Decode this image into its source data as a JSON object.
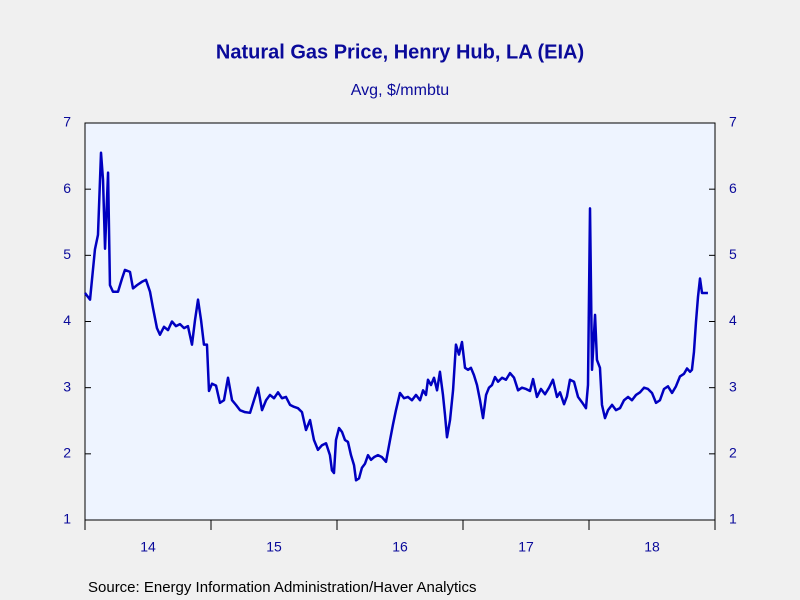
{
  "chart_data": {
    "type": "line",
    "title": "Natural Gas Price, Henry Hub, LA (EIA)",
    "subtitle": "Avg, $/mmbtu",
    "source": "Source:  Energy Information Administration/Haver Analytics",
    "color": "#0000c0",
    "xlim": [
      2014,
      2019
    ],
    "xticks": [
      {
        "value": 2014.5,
        "label": "14"
      },
      {
        "value": 2015.5,
        "label": "15"
      },
      {
        "value": 2016.5,
        "label": "16"
      },
      {
        "value": 2017.5,
        "label": "17"
      },
      {
        "value": 2018.5,
        "label": "18"
      }
    ],
    "x_minor_ticks": [
      2014,
      2015,
      2016,
      2017,
      2018,
      2019
    ],
    "ylim": [
      1,
      7
    ],
    "yticks": [
      1,
      2,
      3,
      4,
      5,
      6,
      7
    ],
    "y2lim": [
      1,
      7
    ],
    "y2ticks": [
      1,
      2,
      3,
      4,
      5,
      6,
      7
    ],
    "x": [
      2014.0,
      2014.04,
      2014.079,
      2014.103,
      2014.127,
      2014.143,
      2014.159,
      2014.183,
      2014.198,
      2014.222,
      2014.262,
      2014.294,
      2014.317,
      2014.357,
      2014.381,
      2014.413,
      2014.452,
      2014.484,
      2014.516,
      2014.54,
      2014.571,
      2014.595,
      2014.627,
      2014.659,
      2014.69,
      2014.722,
      2014.754,
      2014.786,
      2014.817,
      2014.849,
      2014.873,
      2014.897,
      2014.921,
      2014.944,
      2014.968,
      2014.984,
      2015.008,
      2015.04,
      2015.071,
      2015.103,
      2015.135,
      2015.167,
      2015.198,
      2015.23,
      2015.27,
      2015.31,
      2015.341,
      2015.373,
      2015.405,
      2015.437,
      2015.468,
      2015.5,
      2015.532,
      2015.563,
      2015.595,
      2015.627,
      2015.659,
      2015.69,
      2015.722,
      2015.754,
      2015.786,
      2015.817,
      2015.849,
      2015.881,
      2015.913,
      2015.944,
      2015.96,
      2015.976,
      2015.992,
      2016.016,
      2016.04,
      2016.063,
      2016.087,
      2016.111,
      2016.135,
      2016.151,
      2016.175,
      2016.198,
      2016.222,
      2016.246,
      2016.27,
      2016.294,
      2016.325,
      2016.357,
      2016.389,
      2016.421,
      2016.444,
      2016.468,
      2016.5,
      2016.532,
      2016.563,
      2016.595,
      2016.627,
      2016.659,
      2016.683,
      2016.706,
      2016.722,
      2016.746,
      2016.77,
      2016.794,
      2016.817,
      2016.841,
      2016.857,
      2016.873,
      2016.897,
      2016.921,
      2016.944,
      2016.968,
      2016.992,
      2017.016,
      2017.04,
      2017.063,
      2017.087,
      2017.111,
      2017.135,
      2017.159,
      2017.183,
      2017.206,
      2017.23,
      2017.254,
      2017.278,
      2017.31,
      2017.341,
      2017.373,
      2017.405,
      2017.437,
      2017.468,
      2017.5,
      2017.532,
      2017.556,
      2017.587,
      2017.619,
      2017.651,
      2017.683,
      2017.714,
      2017.746,
      2017.77,
      2017.802,
      2017.825,
      2017.849,
      2017.881,
      2017.913,
      2017.944,
      2017.976,
      2017.992,
      2018.008,
      2018.024,
      2018.048,
      2018.063,
      2018.087,
      2018.103,
      2018.127,
      2018.151,
      2018.183,
      2018.214,
      2018.246,
      2018.278,
      2018.31,
      2018.341,
      2018.373,
      2018.405,
      2018.437,
      2018.468,
      2018.5,
      2018.532,
      2018.563,
      2018.595,
      2018.627,
      2018.659,
      2018.69,
      2018.722,
      2018.754,
      2018.778,
      2018.802,
      2018.817,
      2018.833,
      2018.849,
      2018.865,
      2018.881,
      2018.897,
      2018.944
    ],
    "values": [
      4.43,
      4.33,
      5.09,
      5.31,
      6.55,
      6.14,
      5.1,
      6.25,
      4.55,
      4.45,
      4.45,
      4.65,
      4.78,
      4.75,
      4.5,
      4.55,
      4.6,
      4.63,
      4.45,
      4.2,
      3.9,
      3.8,
      3.92,
      3.87,
      4.0,
      3.93,
      3.96,
      3.9,
      3.93,
      3.65,
      4.02,
      4.33,
      4.02,
      3.65,
      3.65,
      2.95,
      3.06,
      3.03,
      2.77,
      2.81,
      3.15,
      2.81,
      2.74,
      2.66,
      2.63,
      2.62,
      2.81,
      3.0,
      2.66,
      2.81,
      2.89,
      2.84,
      2.93,
      2.84,
      2.86,
      2.74,
      2.71,
      2.69,
      2.63,
      2.36,
      2.51,
      2.21,
      2.06,
      2.13,
      2.16,
      1.98,
      1.75,
      1.71,
      2.21,
      2.39,
      2.33,
      2.21,
      2.18,
      1.98,
      1.83,
      1.6,
      1.63,
      1.79,
      1.85,
      1.98,
      1.91,
      1.95,
      1.98,
      1.95,
      1.88,
      2.21,
      2.44,
      2.66,
      2.92,
      2.84,
      2.86,
      2.81,
      2.89,
      2.81,
      2.96,
      2.89,
      3.12,
      3.04,
      3.15,
      2.96,
      3.24,
      2.89,
      2.59,
      2.25,
      2.51,
      2.96,
      3.65,
      3.5,
      3.69,
      3.3,
      3.27,
      3.3,
      3.19,
      3.04,
      2.81,
      2.54,
      2.89,
      3.0,
      3.04,
      3.16,
      3.09,
      3.15,
      3.12,
      3.22,
      3.15,
      2.96,
      3.0,
      2.98,
      2.95,
      3.13,
      2.86,
      2.98,
      2.9,
      3.0,
      3.12,
      2.86,
      2.93,
      2.75,
      2.87,
      3.12,
      3.09,
      2.86,
      2.78,
      2.69,
      3.04,
      5.71,
      3.27,
      4.1,
      3.42,
      3.3,
      2.74,
      2.54,
      2.66,
      2.74,
      2.66,
      2.69,
      2.81,
      2.86,
      2.81,
      2.89,
      2.93,
      3.0,
      2.98,
      2.92,
      2.77,
      2.81,
      2.98,
      3.02,
      2.92,
      3.02,
      3.17,
      3.21,
      3.29,
      3.24,
      3.27,
      3.54,
      3.99,
      4.37,
      4.65,
      4.43,
      4.43
    ]
  }
}
